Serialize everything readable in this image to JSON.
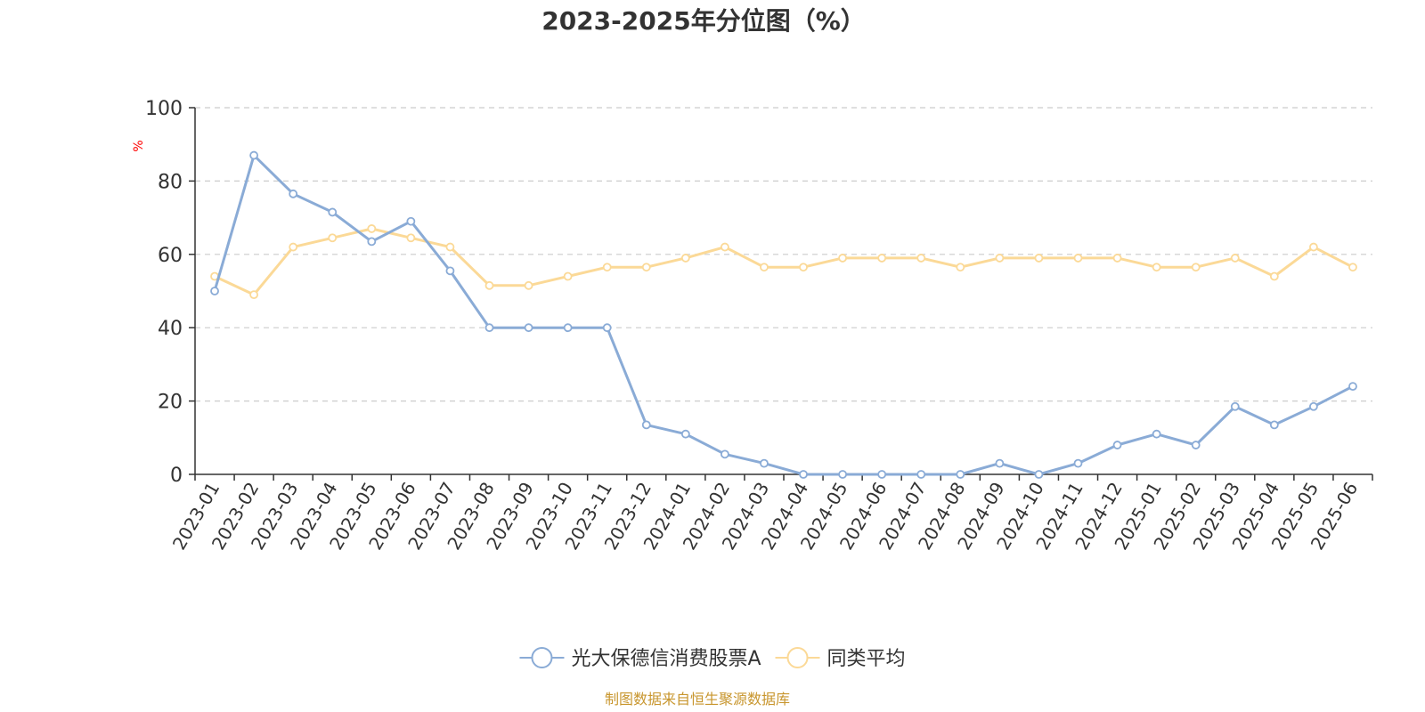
{
  "chart_data": {
    "type": "line",
    "title": "2023-2025年分位图（%）",
    "y_unit_label": "%",
    "ylim": [
      0,
      100
    ],
    "yticks": [
      "0",
      "20",
      "40",
      "60",
      "80",
      "100"
    ],
    "grid": true,
    "legend_position": "bottom",
    "categories": [
      "2023-01",
      "2023-02",
      "2023-03",
      "2023-04",
      "2023-05",
      "2023-06",
      "2023-07",
      "2023-08",
      "2023-09",
      "2023-10",
      "2023-11",
      "2023-12",
      "2024-01",
      "2024-02",
      "2024-03",
      "2024-04",
      "2024-05",
      "2024-06",
      "2024-07",
      "2024-08",
      "2024-09",
      "2024-10",
      "2024-11",
      "2024-12",
      "2025-01",
      "2025-02",
      "2025-03",
      "2025-04",
      "2025-05",
      "2025-06"
    ],
    "series": [
      {
        "name": "光大保德信消费股票A",
        "color": "#8aabd6",
        "values": [
          50,
          87,
          76.5,
          71.5,
          63.5,
          69,
          55.5,
          40,
          40,
          40,
          40,
          13.5,
          11,
          5.5,
          3,
          0,
          0,
          0,
          0,
          0,
          3,
          0,
          3,
          8,
          11,
          8,
          18.5,
          13.5,
          18.5,
          24
        ]
      },
      {
        "name": "同类平均",
        "color": "#fbd997",
        "values": [
          54,
          49,
          62,
          64.5,
          67,
          64.5,
          62,
          51.5,
          51.5,
          54,
          56.5,
          56.5,
          59,
          62,
          56.5,
          56.5,
          59,
          59,
          59,
          56.5,
          59,
          59,
          59,
          59,
          56.5,
          56.5,
          59,
          54,
          62,
          56.5
        ]
      }
    ]
  },
  "source_text": "制图数据来自恒生聚源数据库",
  "colors": {
    "unit_label": "#ff0000",
    "source_text": "#c8962e",
    "axis": "#333333",
    "grid": "#cccccc"
  }
}
